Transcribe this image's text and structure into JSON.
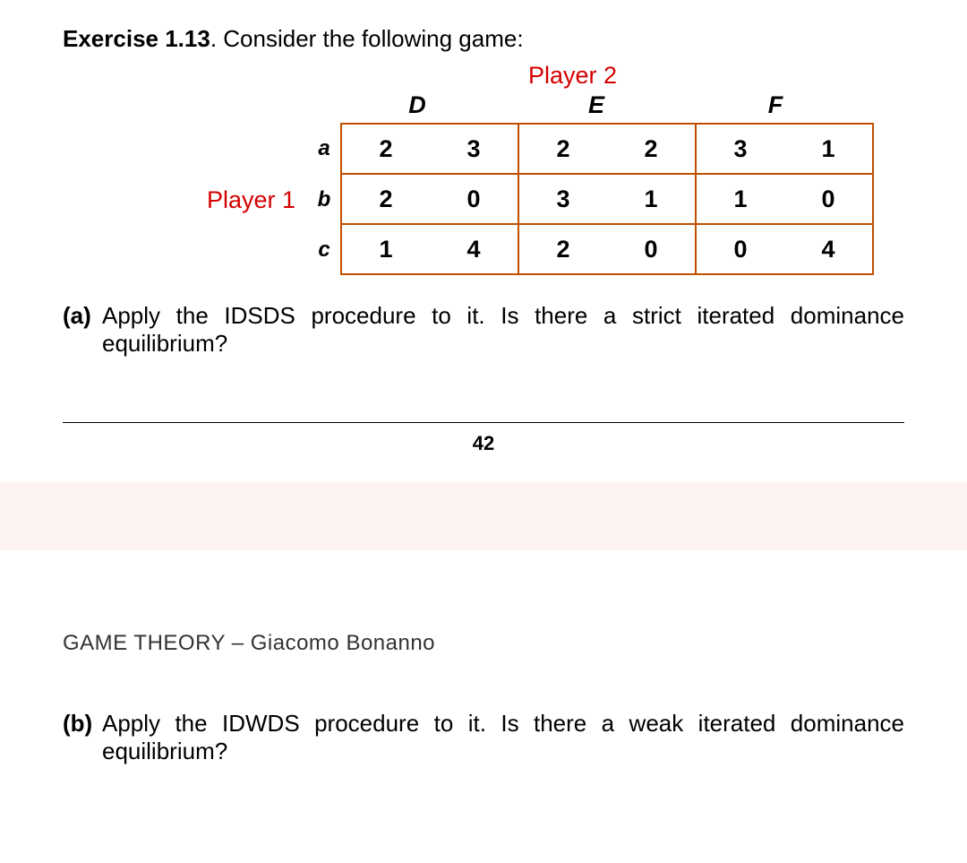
{
  "exercise": {
    "label_bold": "Exercise 1.13",
    "label_rest": ". Consider the following game:"
  },
  "players": {
    "p1": "Player 1",
    "p2": "Player  2"
  },
  "table": {
    "border_color": "#c05000",
    "accent_color": "#d40000",
    "col_headers": [
      "D",
      "E",
      "F"
    ],
    "row_headers": [
      "a",
      "b",
      "c"
    ],
    "payoffs": [
      [
        [
          2,
          3
        ],
        [
          2,
          2
        ],
        [
          3,
          1
        ]
      ],
      [
        [
          2,
          0
        ],
        [
          3,
          1
        ],
        [
          1,
          0
        ]
      ],
      [
        [
          1,
          4
        ],
        [
          2,
          0
        ],
        [
          0,
          4
        ]
      ]
    ]
  },
  "questions": {
    "a_tag": "(a)",
    "a_text": "Apply the IDSDS procedure to it. Is there a strict iterated dominance equilibrium?",
    "b_tag": "(b)",
    "b_text": "Apply the IDWDS procedure to it. Is there a weak iterated dominance equilibrium?"
  },
  "page_number": "42",
  "book_title": "GAME THEORY – Giacomo Bonanno"
}
